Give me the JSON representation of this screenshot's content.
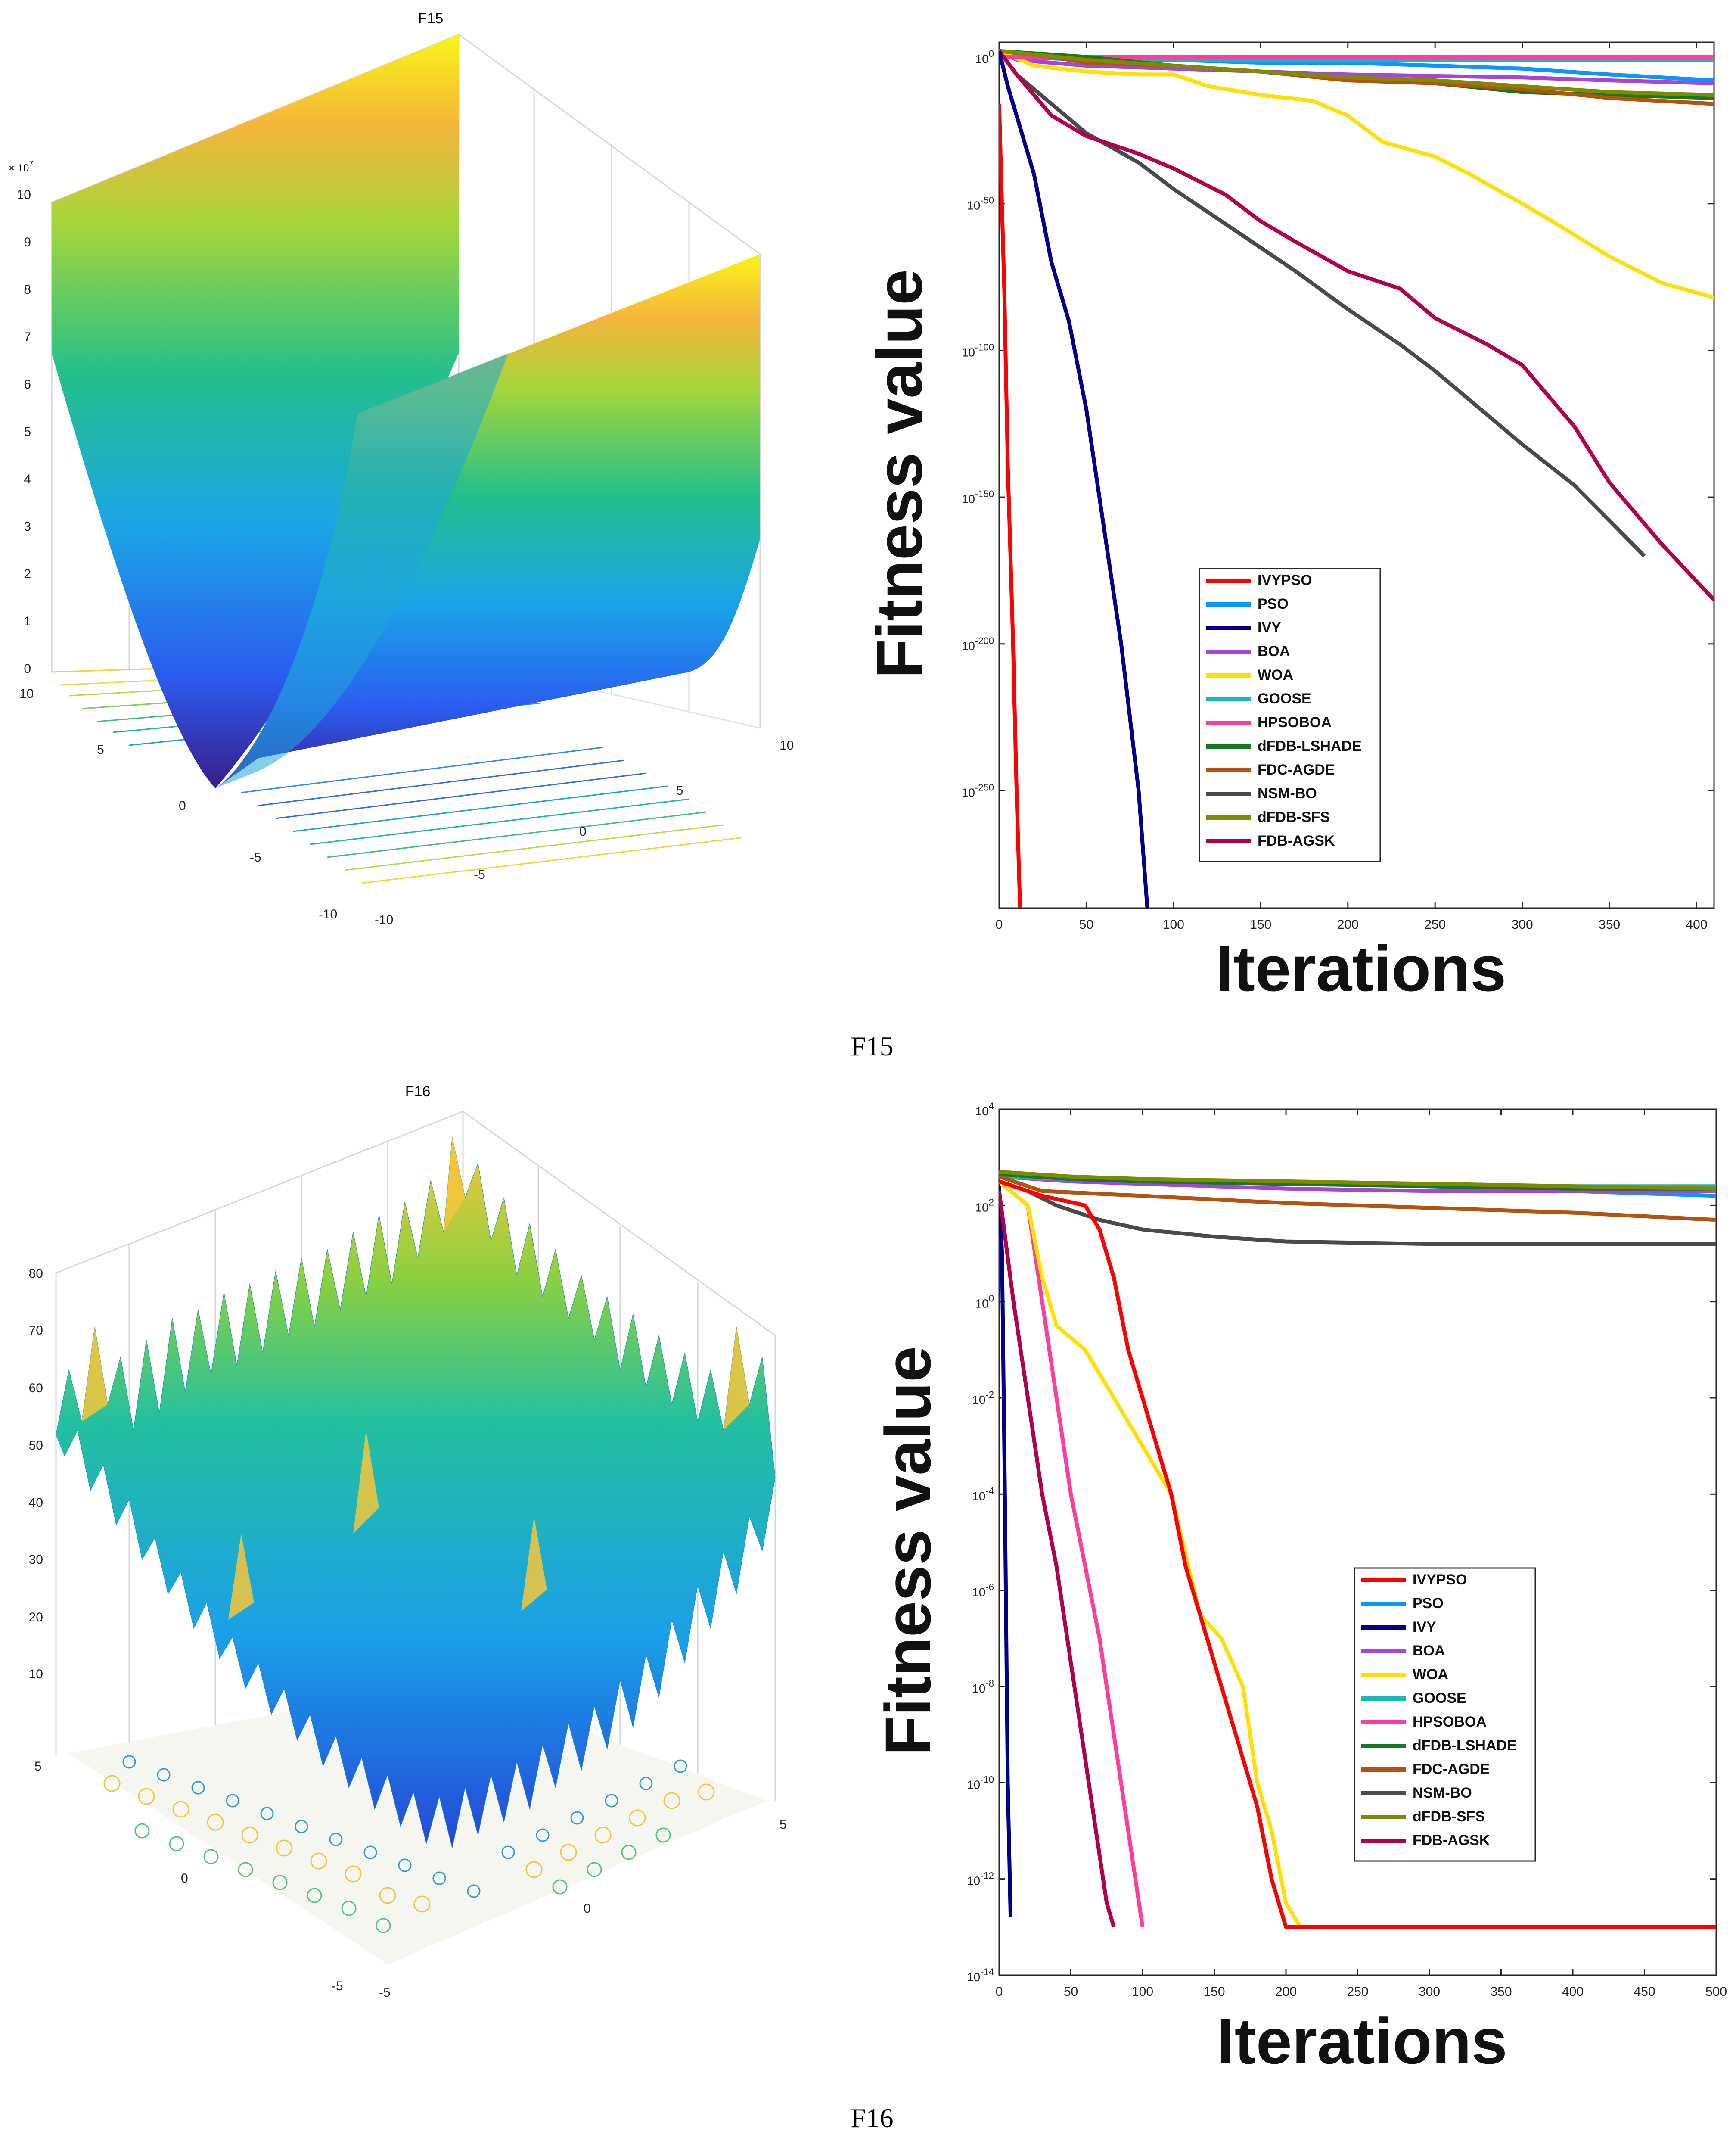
{
  "figure": {
    "caption_top": "F15",
    "caption_bottom": "F16"
  },
  "surface_f15": {
    "title": "F15",
    "exponent": "× 10",
    "exponent_power": "7",
    "z_ticks": [
      "0",
      "1",
      "2",
      "3",
      "4",
      "5",
      "6",
      "7",
      "8",
      "9",
      "10"
    ],
    "x_ticks": [
      "-10",
      "-5",
      "0",
      "5",
      "10"
    ],
    "y_ticks": [
      "-10",
      "-5",
      "0",
      "5",
      "10"
    ]
  },
  "surface_f16": {
    "title": "F16",
    "z_ticks": [
      "10",
      "20",
      "30",
      "40",
      "50",
      "60",
      "70",
      "80"
    ],
    "x_ticks": [
      "-5",
      "0",
      "5"
    ],
    "y_ticks": [
      "-5",
      "0",
      "5"
    ]
  },
  "colors": {
    "IVYPSO": "#ff0000",
    "PSO": "#0a96ff",
    "IVY": "#00008c",
    "BOA": "#a845d8",
    "WOA": "#ffe000",
    "GOOSE": "#1bb6b6",
    "HPSOBOA": "#ff3d9e",
    "dFDB-LSHADE": "#137a1f",
    "FDC-AGDE": "#b5520e",
    "NSM-BO": "#4a4a4a",
    "dFDB-SFS": "#808a00",
    "FDB-AGSK": "#b0004e"
  },
  "chart_data": [
    {
      "type": "line",
      "title": "F15",
      "xlabel": "Iterations",
      "ylabel": "Fitness value",
      "yscale": "log10",
      "xlim": [
        0,
        410
      ],
      "ylim_exp": [
        -290,
        5
      ],
      "x_ticks": [
        "0",
        "50",
        "100",
        "150",
        "200",
        "250",
        "300",
        "350",
        "400"
      ],
      "y_tick_exps": [
        0,
        -50,
        -100,
        -150,
        -200,
        -250
      ],
      "y_tick_labels": [
        "10",
        "10",
        "10",
        "10",
        "10",
        "10"
      ],
      "y_tick_sups": [
        "0",
        "-50",
        "-100",
        "-150",
        "-200",
        "-250"
      ],
      "legend": [
        "IVYPSO",
        "PSO",
        "IVY",
        "BOA",
        "WOA",
        "GOOSE",
        "HPSOBOA",
        "dFDB-LSHADE",
        "FDC-AGDE",
        "NSM-BO",
        "dFDB-SFS",
        "FDB-AGSK"
      ],
      "legend_position": "lower-middle",
      "series": [
        {
          "name": "PSO",
          "x": [
            0,
            10,
            50,
            100,
            150,
            200,
            250,
            300,
            350,
            380,
            410
          ],
          "y": [
            2,
            0,
            -1,
            -1,
            -2,
            -2,
            -3,
            -4,
            -6,
            -7,
            -8
          ]
        },
        {
          "name": "BOA",
          "x": [
            0,
            10,
            50,
            100,
            150,
            200,
            250,
            300,
            350,
            410
          ],
          "y": [
            2,
            -1,
            -3,
            -4,
            -5,
            -6,
            -6.5,
            -7,
            -8,
            -9
          ]
        },
        {
          "name": "WOA",
          "x": [
            0,
            20,
            50,
            80,
            100,
            120,
            150,
            180,
            200,
            220,
            250,
            270,
            300,
            320,
            350,
            380,
            410
          ],
          "y": [
            2,
            -3,
            -5,
            -6,
            -6,
            -10,
            -13,
            -15,
            -20,
            -29,
            -34,
            -40,
            -50,
            -57,
            -68,
            -77,
            -82
          ]
        },
        {
          "name": "GOOSE",
          "x": [
            0,
            20,
            50,
            100,
            150,
            200,
            250,
            300,
            350,
            410
          ],
          "y": [
            2,
            1,
            0,
            -1,
            -1,
            -1,
            -1,
            -1,
            -1,
            -1
          ]
        },
        {
          "name": "HPSOBOA",
          "x": [
            0,
            50,
            100,
            200,
            300,
            410
          ],
          "y": [
            0,
            0,
            0,
            0,
            0,
            0
          ]
        },
        {
          "name": "dFDB-LSHADE",
          "x": [
            0,
            50,
            100,
            150,
            200,
            250,
            300,
            350,
            410
          ],
          "y": [
            2,
            0,
            -3,
            -5,
            -7,
            -9,
            -12,
            -13,
            -14
          ]
        },
        {
          "name": "FDC-AGDE",
          "x": [
            0,
            30,
            50,
            100,
            150,
            200,
            250,
            300,
            350,
            410
          ],
          "y": [
            2,
            0,
            -2,
            -3,
            -5,
            -8,
            -9,
            -11,
            -14,
            -16
          ]
        },
        {
          "name": "dFDB-SFS",
          "x": [
            0,
            50,
            100,
            150,
            200,
            250,
            300,
            350,
            410
          ],
          "y": [
            2,
            -1,
            -3,
            -5,
            -7,
            -8,
            -10,
            -12,
            -13
          ]
        },
        {
          "name": "NSM-BO",
          "x": [
            0,
            10,
            30,
            50,
            80,
            100,
            130,
            150,
            170,
            200,
            230,
            250,
            280,
            300,
            330,
            350,
            370
          ],
          "y": [
            2,
            -6,
            -16,
            -26,
            -36,
            -45,
            -57,
            -65,
            -73,
            -86,
            -98,
            -107,
            -122,
            -132,
            -146,
            -158,
            -170
          ]
        },
        {
          "name": "FDB-AGSK",
          "x": [
            0,
            10,
            30,
            50,
            80,
            100,
            130,
            150,
            170,
            200,
            230,
            250,
            280,
            300,
            330,
            350,
            380,
            410
          ],
          "y": [
            2,
            -6,
            -20,
            -27,
            -33,
            -38,
            -47,
            -56,
            -63,
            -73,
            -79,
            -89,
            -98,
            -105,
            -126,
            -145,
            -166,
            -185
          ]
        },
        {
          "name": "IVY",
          "x": [
            0,
            5,
            10,
            20,
            30,
            40,
            50,
            60,
            70,
            80,
            85
          ],
          "y": [
            2,
            -10,
            -20,
            -40,
            -70,
            -90,
            -120,
            -160,
            -200,
            -250,
            -290
          ]
        },
        {
          "name": "IVYPSO",
          "x": [
            0,
            3,
            5,
            8,
            10,
            12
          ],
          "y": [
            -16,
            -80,
            -140,
            -200,
            -250,
            -290
          ]
        }
      ]
    },
    {
      "type": "line",
      "title": "F16",
      "xlabel": "Iterations",
      "ylabel": "Fitness value",
      "yscale": "log10",
      "xlim": [
        0,
        500
      ],
      "ylim_exp": [
        -14,
        4
      ],
      "x_ticks": [
        "0",
        "50",
        "100",
        "150",
        "200",
        "250",
        "300",
        "350",
        "400",
        "450",
        "500"
      ],
      "y_tick_exps": [
        4,
        2,
        0,
        -2,
        -4,
        -6,
        -8,
        -10,
        -12,
        -14
      ],
      "y_tick_labels": [
        "10",
        "10",
        "10",
        "10",
        "10",
        "10",
        "10",
        "10",
        "10",
        "10"
      ],
      "y_tick_sups": [
        "4",
        "2",
        "0",
        "-2",
        "-4",
        "-6",
        "-8",
        "-10",
        "-12",
        "-14"
      ],
      "legend": [
        "IVYPSO",
        "PSO",
        "IVY",
        "BOA",
        "WOA",
        "GOOSE",
        "HPSOBOA",
        "dFDB-LSHADE",
        "FDC-AGDE",
        "NSM-BO",
        "dFDB-SFS",
        "FDB-AGSK"
      ],
      "legend_position": "lower-right",
      "series": [
        {
          "name": "PSO",
          "x": [
            0,
            50,
            100,
            200,
            300,
            400,
            500
          ],
          "y": [
            2.65,
            2.6,
            2.55,
            2.45,
            2.4,
            2.3,
            2.2
          ]
        },
        {
          "name": "BOA",
          "x": [
            0,
            50,
            100,
            200,
            300,
            400,
            500
          ],
          "y": [
            2.6,
            2.5,
            2.45,
            2.35,
            2.3,
            2.3,
            2.3
          ]
        },
        {
          "name": "GOOSE",
          "x": [
            0,
            50,
            100,
            200,
            300,
            400,
            500
          ],
          "y": [
            2.6,
            2.55,
            2.5,
            2.5,
            2.45,
            2.4,
            2.4
          ]
        },
        {
          "name": "dFDB-LSHADE",
          "x": [
            0,
            50,
            100,
            200,
            300,
            400,
            500
          ],
          "y": [
            2.65,
            2.55,
            2.5,
            2.45,
            2.4,
            2.35,
            2.35
          ]
        },
        {
          "name": "dFDB-SFS",
          "x": [
            0,
            50,
            100,
            200,
            300,
            400,
            500
          ],
          "y": [
            2.7,
            2.6,
            2.55,
            2.5,
            2.45,
            2.4,
            2.35
          ]
        },
        {
          "name": "FDC-AGDE",
          "x": [
            0,
            30,
            100,
            200,
            300,
            400,
            500
          ],
          "y": [
            2.6,
            2.3,
            2.2,
            2.05,
            1.95,
            1.85,
            1.7
          ]
        },
        {
          "name": "NSM-BO",
          "x": [
            0,
            20,
            40,
            70,
            100,
            150,
            200,
            300,
            400,
            500
          ],
          "y": [
            2.5,
            2.3,
            2.0,
            1.7,
            1.5,
            1.35,
            1.25,
            1.2,
            1.2,
            1.2
          ]
        },
        {
          "name": "IVY",
          "x": [
            0,
            2,
            4,
            6,
            8
          ],
          "y": [
            2.4,
            1.0,
            -4,
            -10,
            -12.8
          ]
        },
        {
          "name": "FDB-AGSK",
          "x": [
            0,
            10,
            20,
            30,
            40,
            50,
            60,
            70,
            75,
            80
          ],
          "y": [
            2.3,
            0,
            -2,
            -4,
            -5.5,
            -7.5,
            -9.5,
            -11.5,
            -12.5,
            -13
          ]
        },
        {
          "name": "HPSOBOA",
          "x": [
            0,
            20,
            30,
            40,
            50,
            60,
            70,
            80,
            90,
            100
          ],
          "y": [
            2.5,
            2,
            0,
            -2,
            -4,
            -5.5,
            -7,
            -9,
            -11,
            -13
          ]
        },
        {
          "name": "WOA",
          "x": [
            0,
            20,
            30,
            40,
            60,
            80,
            100,
            120,
            140,
            155,
            170,
            180,
            190,
            200,
            210
          ],
          "y": [
            2.5,
            2,
            0.5,
            -0.5,
            -1,
            -2,
            -3,
            -4,
            -6.5,
            -7,
            -8,
            -10,
            -11,
            -12.5,
            -13
          ]
        },
        {
          "name": "IVYPSO",
          "x": [
            0,
            30,
            60,
            70,
            80,
            90,
            100,
            110,
            120,
            130,
            140,
            150,
            160,
            170,
            180,
            190,
            200,
            300,
            400,
            500
          ],
          "y": [
            2.5,
            2.2,
            2,
            1.5,
            0.5,
            -1,
            -2,
            -3,
            -4,
            -5.5,
            -6.5,
            -7.5,
            -8.5,
            -9.5,
            -10.5,
            -12,
            -13,
            -13,
            -13,
            -13
          ]
        }
      ]
    }
  ]
}
